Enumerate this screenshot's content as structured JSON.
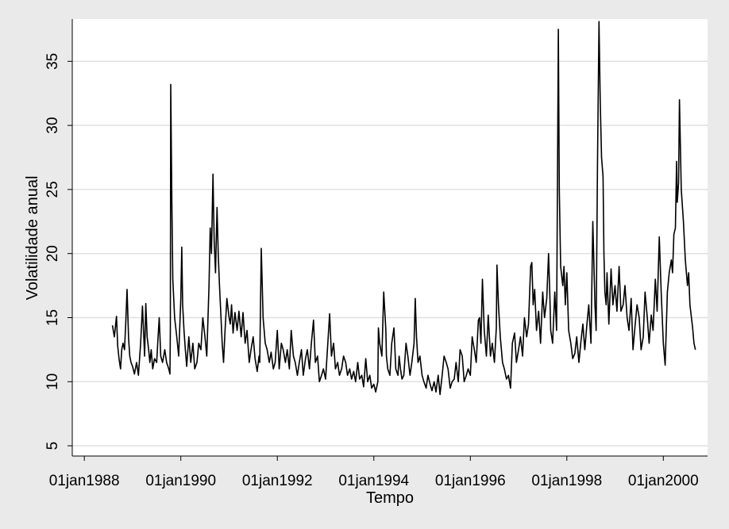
{
  "chart_data": {
    "type": "line",
    "title": "",
    "xlabel": "Tempo",
    "ylabel": "Volatilidade anual",
    "x_ticks": [
      "01jan1988",
      "01jan1990",
      "01jan1992",
      "01jan1994",
      "01jan1996",
      "01jan1998",
      "01jan2000"
    ],
    "y_ticks": [
      5,
      10,
      15,
      20,
      25,
      30,
      35
    ],
    "xlim": [
      "1987-10-01",
      "2000-12-01"
    ],
    "ylim": [
      4.2,
      38.3
    ],
    "grid": true,
    "legend": "none",
    "colors": {
      "line": "#000000",
      "plot_bg": "#ffffff",
      "page_bg": "#eaeaea",
      "grid": "#e0e0e0"
    },
    "series": [
      {
        "x": [
          "1988-08-01",
          "1988-08-15",
          "1988-09-01",
          "1988-09-10",
          "1988-09-20",
          "1988-10-01",
          "1988-10-10",
          "1988-10-20",
          "1988-11-01",
          "1988-11-10",
          "1988-11-20",
          "1988-12-01",
          "1988-12-10",
          "1988-12-20",
          "1989-01-01",
          "1989-01-15",
          "1989-02-01",
          "1989-02-15",
          "1989-03-01",
          "1989-03-15",
          "1989-04-01",
          "1989-04-10",
          "1989-04-20",
          "1989-05-01",
          "1989-05-10",
          "1989-05-20",
          "1989-06-01",
          "1989-06-15",
          "1989-07-01",
          "1989-07-10",
          "1989-07-20",
          "1989-08-01",
          "1989-08-15",
          "1989-09-01",
          "1989-09-15",
          "1989-10-01",
          "1989-10-10",
          "1989-10-13",
          "1989-10-16",
          "1989-10-25",
          "1989-11-01",
          "1989-11-15",
          "1989-12-01",
          "1989-12-15",
          "1990-01-01",
          "1990-01-08",
          "1990-01-15",
          "1990-01-25",
          "1990-02-05",
          "1990-02-15",
          "1990-03-01",
          "1990-03-15",
          "1990-04-01",
          "1990-04-15",
          "1990-05-01",
          "1990-05-15",
          "1990-06-01",
          "1990-06-15",
          "1990-07-01",
          "1990-07-15",
          "1990-08-01",
          "1990-08-10",
          "1990-08-20",
          "1990-09-01",
          "1990-09-10",
          "1990-09-20",
          "1990-10-01",
          "1990-10-10",
          "1990-10-20",
          "1990-11-01",
          "1990-11-10",
          "1990-11-20",
          "1990-12-01",
          "1990-12-15",
          "1991-01-01",
          "1991-01-10",
          "1991-01-20",
          "1991-02-01",
          "1991-02-15",
          "1991-03-01",
          "1991-03-15",
          "1991-04-01",
          "1991-04-15",
          "1991-05-01",
          "1991-05-15",
          "1991-06-01",
          "1991-06-15",
          "1991-07-01",
          "1991-07-15",
          "1991-08-01",
          "1991-08-15",
          "1991-08-20",
          "1991-09-01",
          "1991-09-15",
          "1991-10-01",
          "1991-10-15",
          "1991-11-01",
          "1991-11-15",
          "1991-12-01",
          "1991-12-15",
          "1992-01-01",
          "1992-01-15",
          "1992-02-01",
          "1992-02-15",
          "1992-03-01",
          "1992-03-15",
          "1992-04-01",
          "1992-04-15",
          "1992-05-01",
          "1992-05-15",
          "1992-06-01",
          "1992-06-15",
          "1992-07-01",
          "1992-07-15",
          "1992-08-01",
          "1992-08-15",
          "1992-09-01",
          "1992-09-15",
          "1992-10-01",
          "1992-10-15",
          "1992-11-01",
          "1992-11-15",
          "1992-12-01",
          "1992-12-15",
          "1993-01-01",
          "1993-02-01",
          "1993-02-15",
          "1993-03-01",
          "1993-03-15",
          "1993-04-01",
          "1993-04-15",
          "1993-05-01",
          "1993-05-15",
          "1993-06-01",
          "1993-06-15",
          "1993-07-01",
          "1993-07-15",
          "1993-08-01",
          "1993-08-15",
          "1993-09-01",
          "1993-09-15",
          "1993-10-01",
          "1993-10-15",
          "1993-11-01",
          "1993-11-15",
          "1993-12-01",
          "1993-12-15",
          "1994-01-01",
          "1994-01-15",
          "1994-02-01",
          "1994-02-05",
          "1994-02-15",
          "1994-03-01",
          "1994-03-15",
          "1994-04-01",
          "1994-04-05",
          "1994-04-15",
          "1994-05-01",
          "1994-05-15",
          "1994-06-01",
          "1994-06-15",
          "1994-07-01",
          "1994-07-10",
          "1994-07-20",
          "1994-08-01",
          "1994-08-15",
          "1994-09-01",
          "1994-09-15",
          "1994-10-01",
          "1994-10-15",
          "1994-11-01",
          "1994-11-10",
          "1994-11-20",
          "1994-12-01",
          "1994-12-15",
          "1995-01-01",
          "1995-01-15",
          "1995-02-01",
          "1995-02-15",
          "1995-03-01",
          "1995-03-15",
          "1995-04-01",
          "1995-04-15",
          "1995-05-01",
          "1995-05-15",
          "1995-06-01",
          "1995-06-15",
          "1995-07-01",
          "1995-07-15",
          "1995-08-01",
          "1995-08-15",
          "1995-09-01",
          "1995-09-15",
          "1995-10-01",
          "1995-10-15",
          "1995-11-01",
          "1995-11-15",
          "1995-12-01",
          "1995-12-15",
          "1996-01-01",
          "1996-01-15",
          "1996-02-01",
          "1996-02-15",
          "1996-03-01",
          "1996-03-10",
          "1996-03-20",
          "1996-04-01",
          "1996-04-15",
          "1996-05-01",
          "1996-05-15",
          "1996-06-01",
          "1996-06-15",
          "1996-07-01",
          "1996-07-15",
          "1996-07-20",
          "1996-08-01",
          "1996-08-15",
          "1996-09-01",
          "1996-09-15",
          "1996-10-01",
          "1996-10-15",
          "1996-11-01",
          "1996-11-15",
          "1996-12-01",
          "1996-12-15",
          "1997-01-01",
          "1997-01-15",
          "1997-02-01",
          "1997-02-15",
          "1997-03-01",
          "1997-03-15",
          "1997-04-01",
          "1997-04-10",
          "1997-04-20",
          "1997-05-01",
          "1997-05-15",
          "1997-06-01",
          "1997-06-15",
          "1997-07-01",
          "1997-07-15",
          "1997-08-01",
          "1997-08-15",
          "1997-08-25",
          "1997-09-01",
          "1997-09-15",
          "1997-10-01",
          "1997-10-15",
          "1997-10-28",
          "1997-11-05",
          "1997-11-15",
          "1997-12-01",
          "1997-12-10",
          "1997-12-20",
          "1998-01-01",
          "1998-01-15",
          "1998-02-01",
          "1998-02-15",
          "1998-03-01",
          "1998-03-15",
          "1998-04-01",
          "1998-04-15",
          "1998-05-01",
          "1998-05-15",
          "1998-06-01",
          "1998-06-15",
          "1998-07-01",
          "1998-07-15",
          "1998-08-01",
          "1998-08-10",
          "1998-08-20",
          "1998-09-01",
          "1998-09-10",
          "1998-09-20",
          "1998-10-01",
          "1998-10-08",
          "1998-10-15",
          "1998-10-25",
          "1998-11-01",
          "1998-11-15",
          "1998-12-01",
          "1998-12-15",
          "1999-01-01",
          "1999-01-15",
          "1999-02-01",
          "1999-02-15",
          "1999-03-01",
          "1999-03-15",
          "1999-04-01",
          "1999-04-15",
          "1999-05-01",
          "1999-05-15",
          "1999-06-01",
          "1999-06-15",
          "1999-07-01",
          "1999-07-15",
          "1999-08-01",
          "1999-08-15",
          "1999-09-01",
          "1999-09-15",
          "1999-10-01",
          "1999-10-15",
          "1999-11-01",
          "1999-11-15",
          "1999-12-01",
          "1999-12-15",
          "2000-01-01",
          "2000-01-15",
          "2000-02-01",
          "2000-02-15",
          "2000-03-01",
          "2000-03-10",
          "2000-03-20",
          "2000-04-01",
          "2000-04-10",
          "2000-04-15",
          "2000-04-25",
          "2000-05-01",
          "2000-05-15",
          "2000-06-01",
          "2000-06-15",
          "2000-07-01",
          "2000-07-10",
          "2000-07-20",
          "2000-08-01",
          "2000-08-10",
          "2000-08-20",
          "2000-08-31"
        ],
        "y": [
          14.4,
          13.5,
          15.1,
          12.8,
          11.8,
          11.0,
          12.5,
          13.0,
          12.5,
          14.5,
          17.2,
          13.4,
          12.0,
          11.5,
          11.2,
          10.6,
          11.5,
          10.5,
          13.0,
          15.9,
          12.0,
          16.1,
          13.5,
          12.5,
          11.5,
          12.5,
          11.0,
          11.8,
          11.5,
          13.2,
          15.0,
          12.0,
          11.5,
          12.5,
          11.5,
          11.0,
          10.6,
          14.0,
          33.2,
          23.5,
          18.0,
          15.0,
          13.5,
          12.0,
          16.5,
          20.5,
          16.0,
          14.0,
          12.5,
          11.2,
          13.5,
          11.5,
          13.0,
          11.0,
          11.5,
          13.0,
          12.5,
          15.0,
          13.5,
          12.0,
          17.5,
          22.0,
          20.0,
          26.2,
          21.0,
          18.5,
          23.6,
          20.0,
          17.5,
          15.0,
          13.0,
          11.5,
          14.0,
          16.5,
          15.0,
          14.5,
          16.0,
          13.8,
          15.4,
          14.0,
          15.5,
          13.5,
          15.4,
          13.0,
          14.0,
          11.5,
          12.5,
          13.5,
          11.8,
          10.8,
          12.0,
          11.5,
          20.4,
          15.0,
          13.0,
          12.5,
          11.5,
          12.3,
          11.0,
          11.5,
          14.0,
          11.0,
          13.0,
          12.5,
          11.5,
          12.5,
          11.0,
          14.0,
          12.0,
          11.5,
          10.5,
          11.5,
          12.5,
          10.5,
          11.8,
          12.5,
          11.0,
          13.0,
          14.8,
          11.5,
          12.0,
          10.0,
          10.5,
          11.0,
          10.2,
          15.3,
          12.0,
          13.0,
          11.0,
          11.5,
          10.5,
          11.0,
          12.0,
          11.5,
          10.5,
          11.0,
          10.2,
          10.8,
          10.0,
          11.5,
          10.2,
          10.5,
          9.6,
          11.8,
          10.0,
          10.5,
          9.5,
          9.8,
          9.2,
          10.0,
          14.2,
          13.0,
          12.0,
          17.0,
          14.0,
          12.0,
          11.0,
          10.5,
          13.0,
          14.2,
          11.0,
          10.5,
          12.0,
          11.0,
          10.2,
          10.5,
          13.0,
          12.0,
          10.5,
          11.5,
          13.0,
          16.5,
          13.5,
          11.5,
          12.0,
          10.5,
          10.0,
          9.5,
          10.5,
          9.8,
          9.3,
          10.0,
          9.2,
          10.5,
          9.0,
          10.5,
          12.0,
          11.5,
          11.0,
          9.5,
          10.0,
          10.2,
          11.5,
          10.0,
          12.5,
          12.0,
          10.0,
          10.5,
          11.0,
          10.5,
          13.5,
          12.5,
          11.5,
          14.8,
          15.0,
          13.0,
          18.0,
          14.0,
          12.0,
          15.2,
          12.0,
          13.0,
          11.5,
          14.2,
          19.1,
          16.0,
          13.5,
          11.5,
          11.0,
          10.2,
          10.5,
          9.5,
          13.0,
          13.8,
          11.5,
          12.5,
          13.5,
          12.0,
          15.0,
          13.5,
          14.5,
          19.0,
          19.3,
          16.0,
          17.2,
          14.0,
          15.5,
          13.0,
          17.0,
          15.0,
          16.5,
          20.0,
          16.5,
          14.0,
          13.0,
          17.0,
          14.0,
          37.5,
          25.0,
          19.0,
          17.5,
          19.0,
          16.0,
          18.5,
          14.0,
          13.0,
          11.8,
          12.2,
          13.5,
          11.5,
          13.0,
          14.5,
          12.5,
          14.5,
          16.0,
          13.0,
          22.5,
          16.0,
          14.0,
          27.0,
          38.1,
          32.0,
          27.5,
          26.0,
          20.0,
          17.0,
          16.0,
          18.5,
          14.5,
          18.8,
          16.0,
          17.5,
          15.5,
          19.0,
          15.5,
          16.0,
          17.5,
          15.0,
          14.0,
          16.5,
          12.5,
          14.5,
          16.0,
          15.0,
          12.5,
          13.5,
          17.0,
          15.0,
          13.0,
          15.2,
          14.0,
          18.0,
          15.5,
          21.3,
          17.0,
          13.0,
          11.3,
          17.0,
          18.5,
          19.5,
          18.5,
          21.5,
          22.0,
          27.2,
          24.0,
          25.5,
          32.0,
          25.0,
          22.5,
          19.5,
          17.5,
          18.5,
          16.0,
          15.0,
          14.2,
          13.0,
          12.5
        ]
      }
    ]
  }
}
